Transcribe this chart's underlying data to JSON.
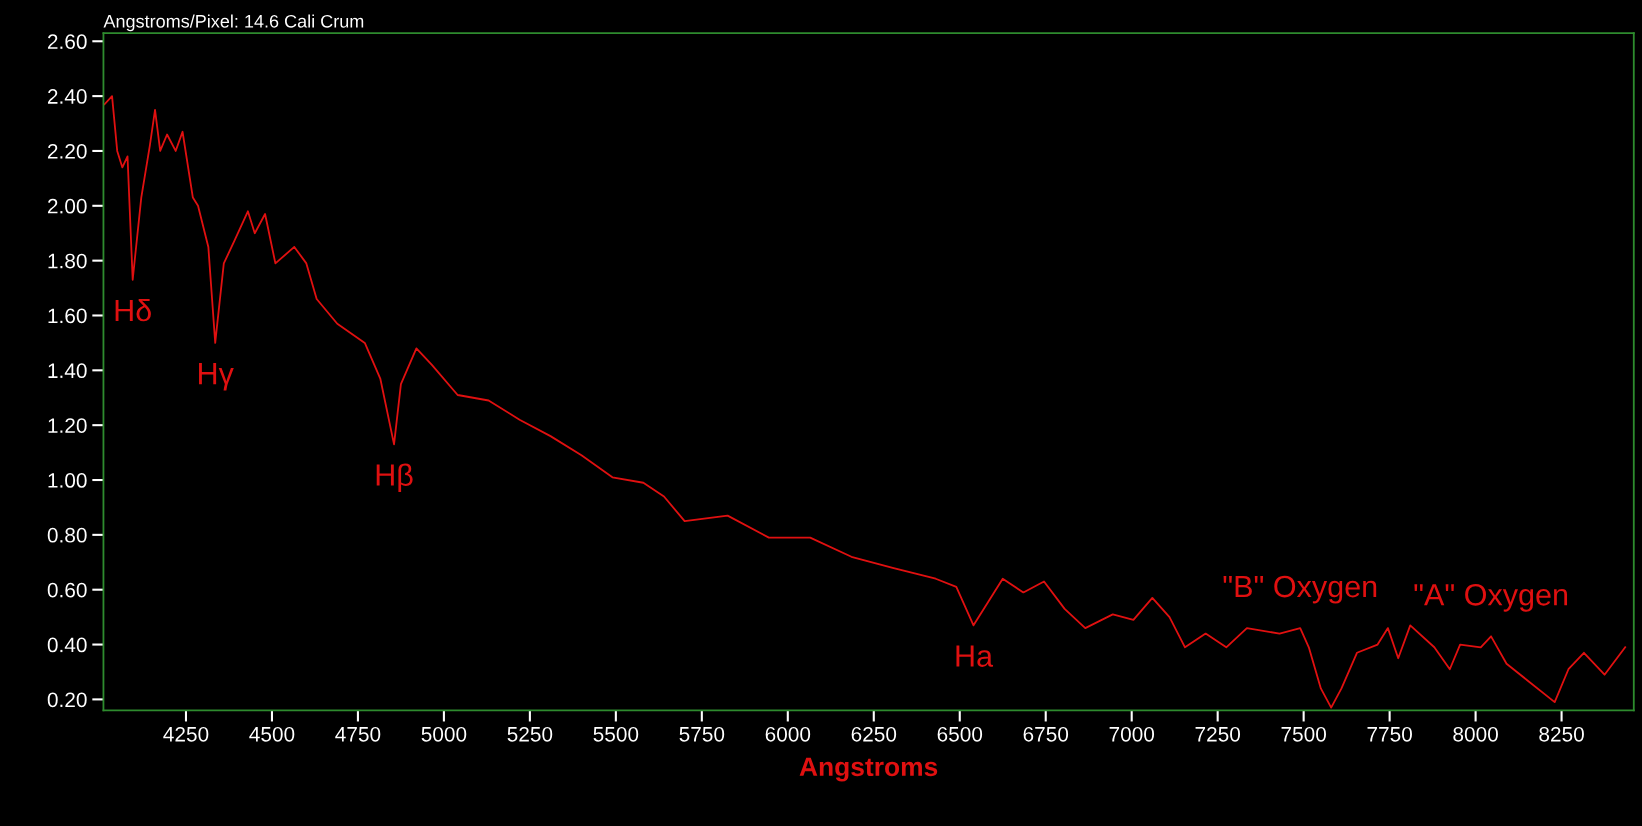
{
  "chart_data": {
    "type": "line",
    "title": "Angstroms/Pixel: 14.6 Cali Crum",
    "xlabel": "Angstroms",
    "xlim": [
      4010,
      8460
    ],
    "xticks": [
      4250,
      4500,
      4750,
      5000,
      5250,
      5500,
      5750,
      6000,
      6250,
      6500,
      6750,
      7000,
      7250,
      7500,
      7750,
      8000,
      8250
    ],
    "ylim": [
      0.16,
      2.63
    ],
    "yticks": [
      {
        "value": 0.2,
        "label": "0.20"
      },
      {
        "value": 0.4,
        "label": "0.40"
      },
      {
        "value": 0.6,
        "label": "0.60"
      },
      {
        "value": 0.8,
        "label": "0.80"
      },
      {
        "value": 1.0,
        "label": "1.00"
      },
      {
        "value": 1.2,
        "label": "1.20"
      },
      {
        "value": 1.4,
        "label": "1.40"
      },
      {
        "value": 1.6,
        "label": "1.60"
      },
      {
        "value": 1.8,
        "label": "1.80"
      },
      {
        "value": 2.0,
        "label": "2.00"
      },
      {
        "value": 2.2,
        "label": "2.20"
      },
      {
        "value": 2.4,
        "label": "2.40"
      },
      {
        "value": 2.6,
        "label": "2.60"
      }
    ],
    "grid": false,
    "marker": "none",
    "line_style": "solid",
    "series": [
      {
        "color": "#e01010",
        "x": [
          4013,
          4035,
          4050,
          4065,
          4080,
          4095,
          4120,
          4145,
          4160,
          4175,
          4195,
          4220,
          4240,
          4270,
          4285,
          4315,
          4335,
          4360,
          4390,
          4430,
          4450,
          4480,
          4510,
          4565,
          4600,
          4630,
          4690,
          4770,
          4815,
          4855,
          4875,
          4920,
          4965,
          5040,
          5130,
          5220,
          5310,
          5400,
          5490,
          5580,
          5640,
          5700,
          5825,
          5945,
          6065,
          6185,
          6305,
          6430,
          6490,
          6540,
          6625,
          6685,
          6745,
          6805,
          6865,
          6945,
          7005,
          7060,
          7110,
          7155,
          7215,
          7275,
          7335,
          7430,
          7490,
          7515,
          7550,
          7580,
          7610,
          7655,
          7715,
          7745,
          7775,
          7810,
          7880,
          7925,
          7955,
          8015,
          8045,
          8090,
          8150,
          8230,
          8270,
          8315,
          8375,
          8435
        ],
        "values": [
          2.37,
          2.4,
          2.2,
          2.14,
          2.18,
          1.73,
          2.03,
          2.22,
          2.35,
          2.2,
          2.26,
          2.2,
          2.27,
          2.03,
          2.0,
          1.85,
          1.5,
          1.79,
          1.87,
          1.98,
          1.9,
          1.97,
          1.79,
          1.85,
          1.79,
          1.66,
          1.57,
          1.5,
          1.37,
          1.13,
          1.35,
          1.48,
          1.42,
          1.31,
          1.29,
          1.22,
          1.16,
          1.09,
          1.01,
          0.99,
          0.94,
          0.85,
          0.87,
          0.79,
          0.79,
          0.72,
          0.68,
          0.64,
          0.61,
          0.47,
          0.64,
          0.59,
          0.63,
          0.53,
          0.46,
          0.51,
          0.49,
          0.57,
          0.5,
          0.39,
          0.44,
          0.39,
          0.46,
          0.44,
          0.46,
          0.39,
          0.24,
          0.17,
          0.24,
          0.37,
          0.4,
          0.46,
          0.35,
          0.47,
          0.39,
          0.31,
          0.4,
          0.39,
          0.43,
          0.33,
          0.27,
          0.19,
          0.31,
          0.37,
          0.29,
          0.39
        ]
      }
    ],
    "annotations": [
      {
        "text": "Hδ",
        "x": 4095,
        "y": 1.73
      },
      {
        "text": "Hγ",
        "x": 4335,
        "y": 1.5
      },
      {
        "text": "Hβ",
        "x": 4855,
        "y": 1.13
      },
      {
        "text": "Ha",
        "x": 6540,
        "y": 0.47
      },
      {
        "text": "\"B\" Oxygen",
        "x": 7490,
        "y": 0.46
      },
      {
        "text": "\"A\" Oxygen",
        "x": 8045,
        "y": 0.43
      }
    ]
  }
}
